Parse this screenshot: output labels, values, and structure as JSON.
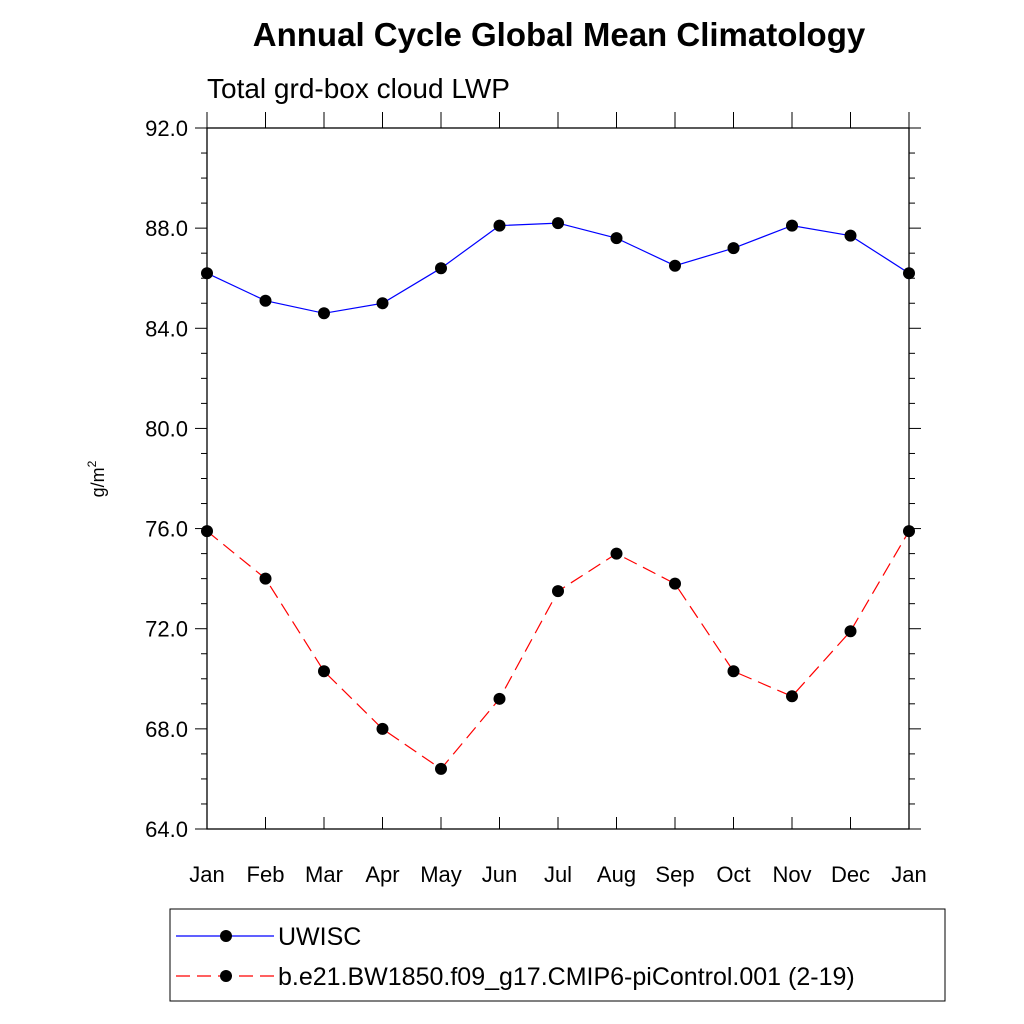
{
  "chart_data": {
    "type": "line",
    "title": "Annual Cycle Global Mean Climatology",
    "subtitle": "Total grd-box cloud LWP",
    "ylabel": "g/m",
    "ylabel_sup": "2",
    "ylim": [
      64.0,
      92.0
    ],
    "yticks": [
      "64.0",
      "68.0",
      "72.0",
      "76.0",
      "80.0",
      "84.0",
      "88.0",
      "92.0"
    ],
    "categories": [
      "Jan",
      "Feb",
      "Mar",
      "Apr",
      "May",
      "Jun",
      "Jul",
      "Aug",
      "Sep",
      "Oct",
      "Nov",
      "Dec",
      "Jan"
    ],
    "legend_position": "bottom",
    "series": [
      {
        "name": "UWISC",
        "color": "#0000ff",
        "dash": "solid",
        "values": [
          86.2,
          85.1,
          84.6,
          85.0,
          86.4,
          88.1,
          88.2,
          87.6,
          86.5,
          87.2,
          88.1,
          87.7,
          86.2
        ]
      },
      {
        "name": "b.e21.BW1850.f09_g17.CMIP6-piControl.001 (2-19)",
        "color": "#ff0000",
        "dash": "dashed",
        "values": [
          75.9,
          74.0,
          70.3,
          68.0,
          66.4,
          69.2,
          73.5,
          75.0,
          73.8,
          70.3,
          69.3,
          71.9,
          75.9
        ]
      }
    ]
  }
}
